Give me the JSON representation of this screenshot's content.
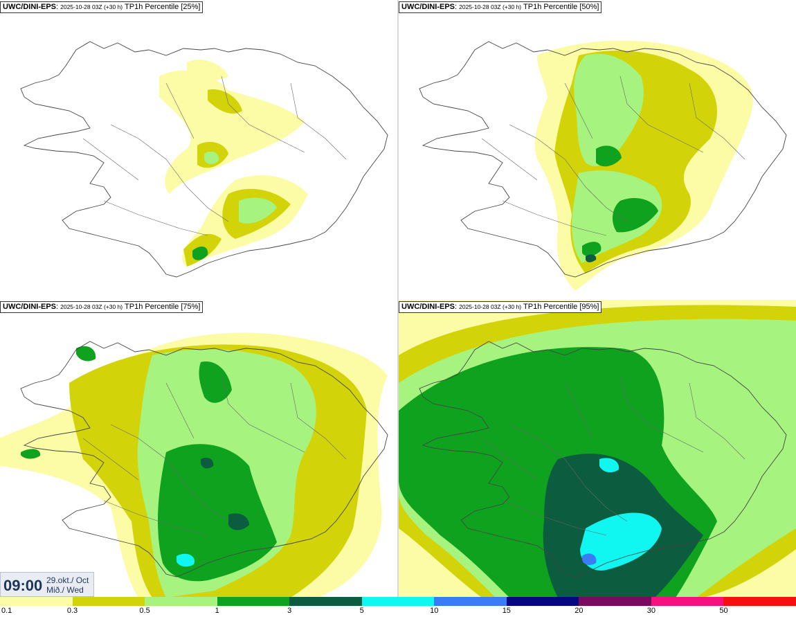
{
  "panels": [
    {
      "model": "UWC/DINI-EPS",
      "run": "2025-10-28 03Z (+30 h)",
      "field": "TP1h Percentile [25%]"
    },
    {
      "model": "UWC/DINI-EPS",
      "run": "2025-10-28 03Z (+30 h)",
      "field": "TP1h Percentile [50%]"
    },
    {
      "model": "UWC/DINI-EPS",
      "run": "2025-10-28 03Z (+30 h)",
      "field": "TP1h Percentile [75%]"
    },
    {
      "model": "UWC/DINI-EPS",
      "run": "2025-10-28 03Z (+30 h)",
      "field": "TP1h Percentile [95%]"
    }
  ],
  "valid_time": {
    "time": "09:00",
    "date": "29.okt./ Oct",
    "weekday": "Mið./ Wed"
  },
  "legend": {
    "labels": [
      "0.1",
      "0.3",
      "0.5",
      "1",
      "3",
      "5",
      "10",
      "15",
      "20",
      "30",
      "50"
    ],
    "colors": [
      "#fdfca6",
      "#d3d30a",
      "#a6f37f",
      "#0fa21f",
      "#0c5c3f",
      "#0ff7f0",
      "#3b7bf5",
      "#06067f",
      "#7a0a5f",
      "#f7117f",
      "#f70e0f"
    ]
  },
  "colors": {
    "level_0_1": "#fdfca6",
    "level_0_3": "#d3d30a",
    "level_0_5": "#a6f37f",
    "level_1": "#0fa21f",
    "level_3": "#0c5c3f",
    "level_5": "#0ff7f0",
    "level_10": "#3b7bf5",
    "coastline": "#444444"
  }
}
